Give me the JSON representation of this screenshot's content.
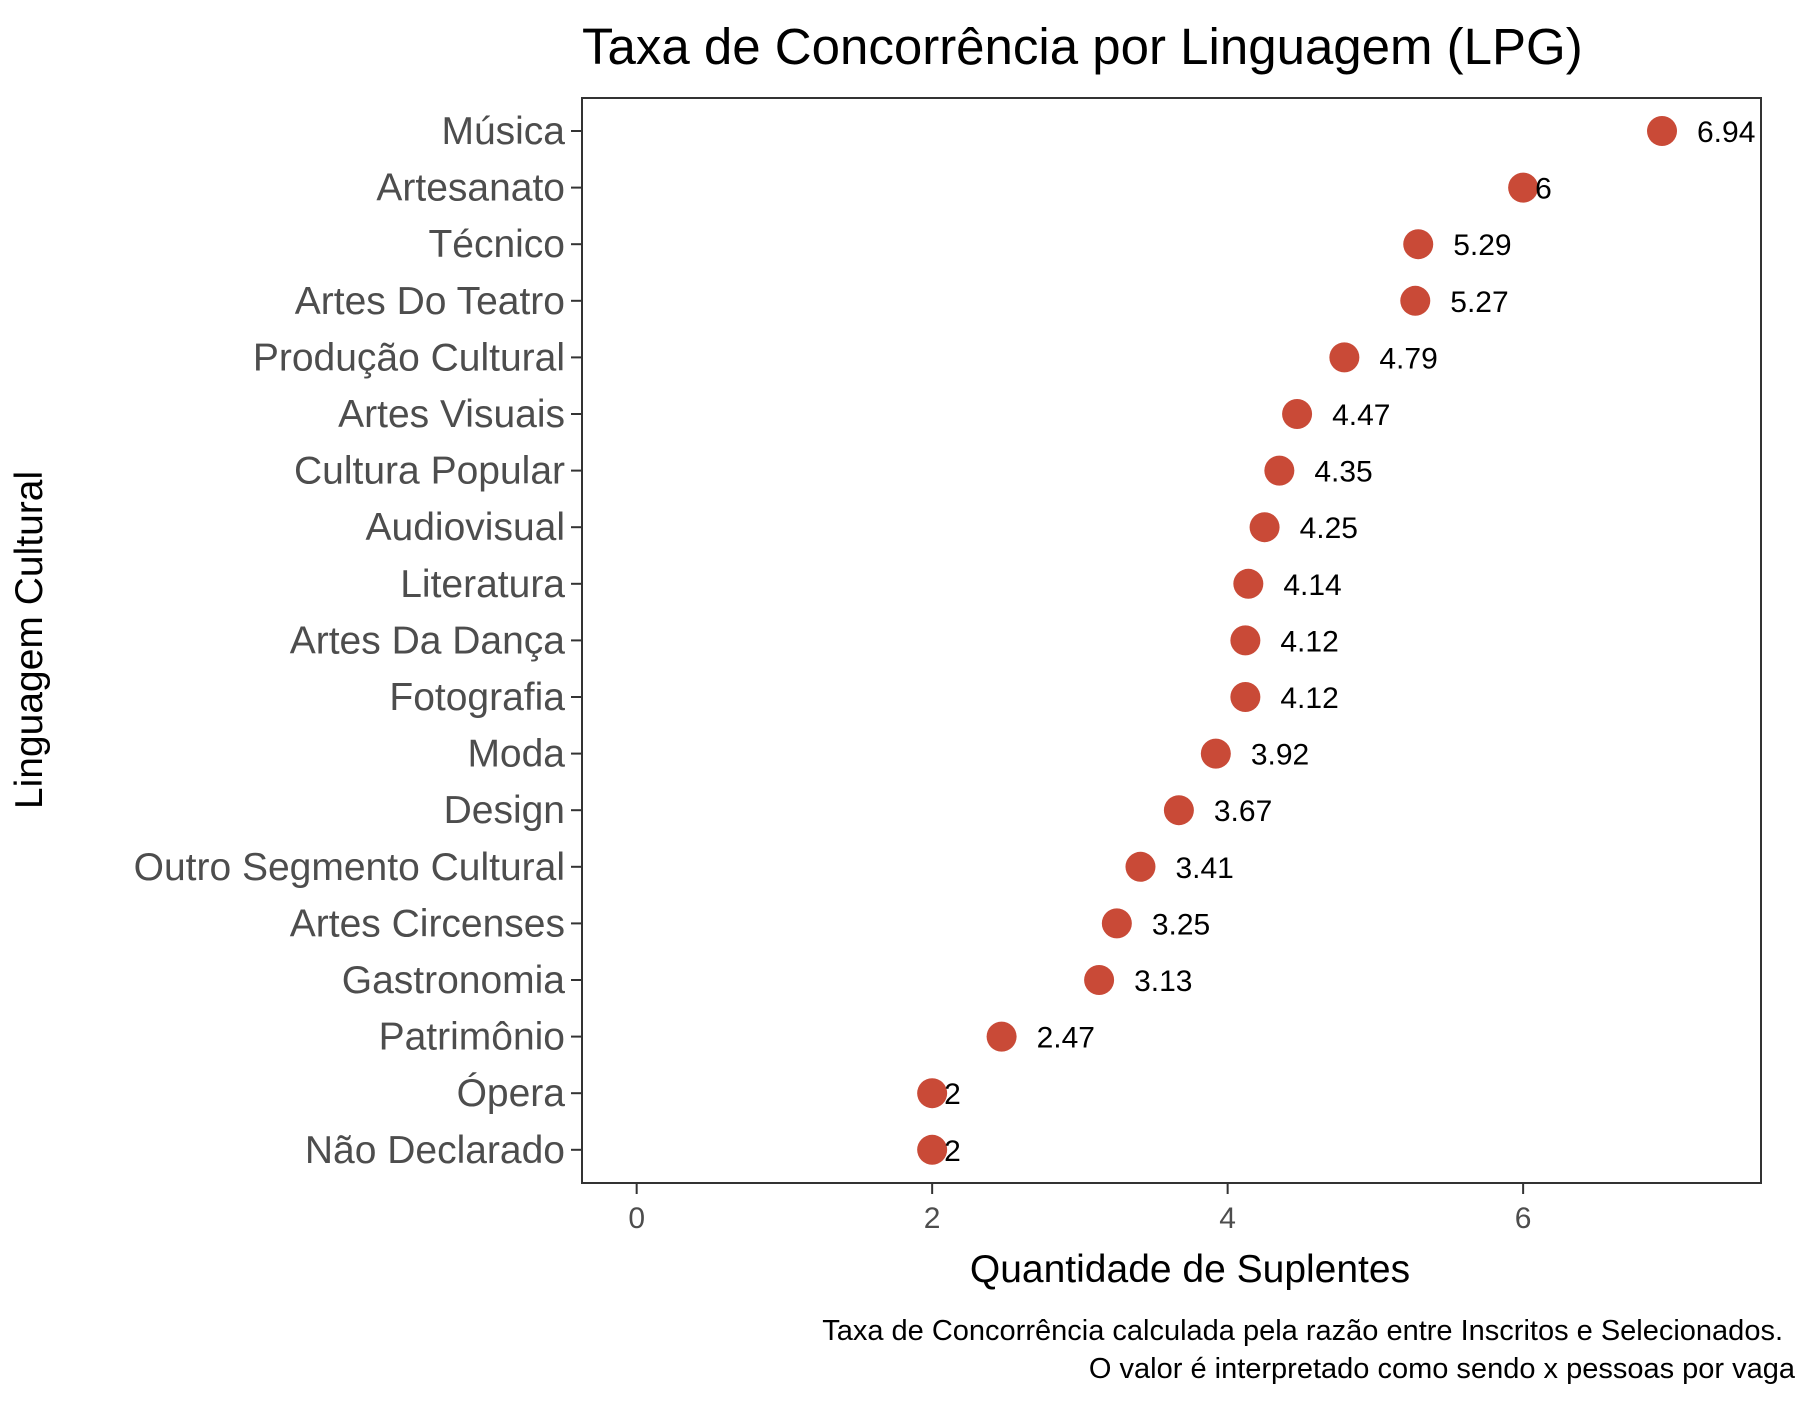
{
  "chart_data": {
    "type": "scatter",
    "title": "Taxa de Concorrência por Linguagem (LPG)",
    "xlabel": "Quantidade de Suplentes",
    "ylabel": "Linguagem Cultural",
    "caption_lines": [
      "Taxa de Concorrência calculada pela razão entre Inscritos e Selecionados.",
      "O valor é interpretado como sendo x pessoas por vaga"
    ],
    "xlim": [
      -0.37,
      7.61
    ],
    "x_ticks": [
      0,
      2,
      4,
      6
    ],
    "categories": [
      "Música",
      "Artesanato",
      "Técnico",
      "Artes Do Teatro",
      "Produção Cultural",
      "Artes Visuais",
      "Cultura Popular",
      "Audiovisual",
      "Literatura",
      "Artes Da Dança",
      "Fotografia",
      "Moda",
      "Design",
      "Outro Segmento Cultural",
      "Artes Circenses",
      "Gastronomia",
      "Patrimônio",
      "Ópera",
      "Não Declarado"
    ],
    "values": [
      6.94,
      6,
      5.29,
      5.27,
      4.79,
      4.47,
      4.35,
      4.25,
      4.14,
      4.12,
      4.12,
      3.92,
      3.67,
      3.41,
      3.25,
      3.13,
      2.47,
      2,
      2
    ],
    "value_labels": [
      "6.94",
      "6",
      "5.29",
      "5.27",
      "4.79",
      "4.47",
      "4.35",
      "4.25",
      "4.14",
      "4.12",
      "4.12",
      "3.92",
      "3.67",
      "3.41",
      "3.25",
      "3.13",
      "2.47",
      "2",
      "2"
    ],
    "point_color": "#c94a37",
    "grid": false,
    "legend": "none"
  }
}
